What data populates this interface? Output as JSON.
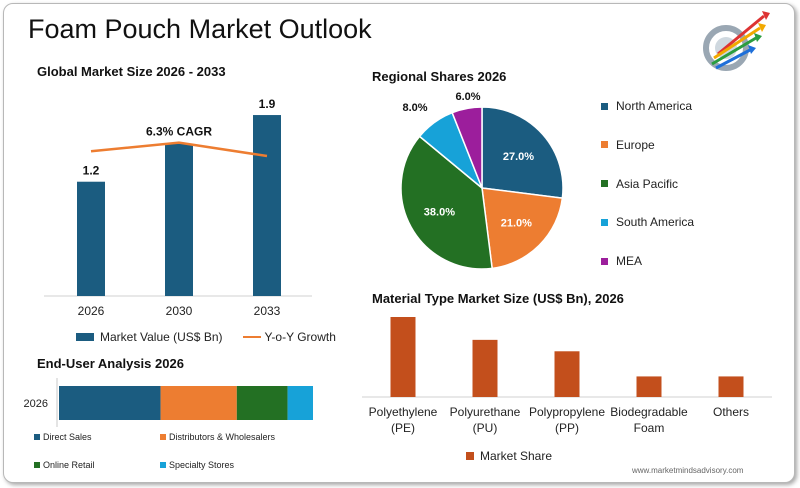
{
  "title": "Foam Pouch Market Outlook",
  "footer": "www.marketmindsadvisory.com",
  "colors": {
    "navy": "#1b5c80",
    "orange": "#ed7d31",
    "green": "#237023",
    "cyan": "#17a2d8",
    "purple": "#9c1e9c",
    "rust": "#c34f1c"
  },
  "logo_icon": "colorful-arrows-logo-icon",
  "chart_data": [
    {
      "type": "bar",
      "title": "Global Market Size 2026 - 2033",
      "categories": [
        "2026",
        "2030",
        "2033"
      ],
      "series": [
        {
          "name": "Market Value (US$ Bn)",
          "values": [
            1.2,
            1.6,
            1.9
          ]
        },
        {
          "name": "Y-o-Y Growth",
          "type": "line",
          "values": [
            1.52,
            1.61,
            1.47
          ]
        }
      ],
      "data_labels": [
        "1.2",
        "",
        "1.9"
      ],
      "annotation": "6.3% CAGR",
      "ylim": [
        0,
        2.1
      ]
    },
    {
      "type": "pie",
      "title": "Regional Shares 2026",
      "labels": [
        "North America",
        "Europe",
        "Asia Pacific",
        "South America",
        "MEA"
      ],
      "values": [
        27.0,
        21.0,
        38.0,
        8.0,
        6.0
      ],
      "data_labels": [
        "27.0%",
        "21.0%",
        "38.0%",
        "8.0%",
        "6.0%"
      ]
    },
    {
      "type": "bar",
      "title": "End-User Analysis 2026",
      "orientation": "horizontal-stacked",
      "categories": [
        "2026"
      ],
      "series": [
        {
          "name": "Direct Sales",
          "values": [
            40
          ]
        },
        {
          "name": "Distributors & Wholesalers",
          "values": [
            30
          ]
        },
        {
          "name": "Online Retail",
          "values": [
            20
          ]
        },
        {
          "name": "Specialty Stores",
          "values": [
            10
          ]
        }
      ]
    },
    {
      "type": "bar",
      "title": "Material Type Market Size (US$ Bn), 2026",
      "categories": [
        "Polyethylene (PE)",
        "Polyurethane (PU)",
        "Polypropylene (PP)",
        "Biodegradable Foam",
        "Others"
      ],
      "category_lines": [
        [
          "Polyethylene",
          "(PE)"
        ],
        [
          "Polyurethane",
          "(PU)"
        ],
        [
          "Polypropylene",
          "(PP)"
        ],
        [
          "Biodegradable",
          "Foam"
        ],
        [
          "Others"
        ]
      ],
      "series": [
        {
          "name": "Market Share",
          "values": [
            0.35,
            0.25,
            0.2,
            0.09,
            0.09
          ]
        }
      ]
    }
  ]
}
